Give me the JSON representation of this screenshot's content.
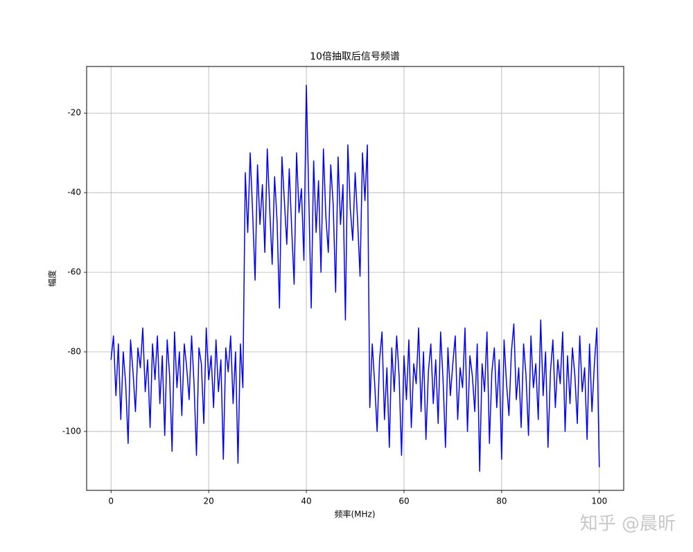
{
  "chart_data": {
    "type": "line",
    "title": "10倍抽取后信号频谱",
    "x_label": "频率(MHz)",
    "y_label": "幅度",
    "color": "#0000ff",
    "grid": true,
    "xlim": [
      -5,
      105
    ],
    "ylim": [
      -114.8,
      -8.3
    ],
    "xticks": [
      0,
      20,
      40,
      60,
      80,
      100
    ],
    "yticks": [
      -100,
      -80,
      -60,
      -40,
      -20
    ],
    "x": [
      0,
      0.5,
      1,
      1.5,
      2,
      2.5,
      3,
      3.5,
      4,
      4.5,
      5,
      5.5,
      6,
      6.5,
      7,
      7.5,
      8,
      8.5,
      9,
      9.5,
      10,
      10.5,
      11,
      11.5,
      12,
      12.5,
      13,
      13.5,
      14,
      14.5,
      15,
      15.5,
      16,
      16.5,
      17,
      17.5,
      18,
      18.5,
      19,
      19.5,
      20,
      20.5,
      21,
      21.5,
      22,
      22.5,
      23,
      23.5,
      24,
      24.5,
      25,
      25.5,
      26,
      26.5,
      27,
      27.5,
      28,
      28.5,
      29,
      29.5,
      30,
      30.5,
      31,
      31.5,
      32,
      32.5,
      33,
      33.5,
      34,
      34.5,
      35,
      35.5,
      36,
      36.5,
      37,
      37.5,
      38,
      38.5,
      39,
      39.5,
      40,
      40.5,
      41,
      41.5,
      42,
      42.5,
      43,
      43.5,
      44,
      44.5,
      45,
      45.5,
      46,
      46.5,
      47,
      47.5,
      48,
      48.5,
      49,
      49.5,
      50,
      50.5,
      51,
      51.5,
      52,
      52.5,
      53,
      53.5,
      54,
      54.5,
      55,
      55.5,
      56,
      56.5,
      57,
      57.5,
      58,
      58.5,
      59,
      59.5,
      60,
      60.5,
      61,
      61.5,
      62,
      62.5,
      63,
      63.5,
      64,
      64.5,
      65,
      65.5,
      66,
      66.5,
      67,
      67.5,
      68,
      68.5,
      69,
      69.5,
      70,
      70.5,
      71,
      71.5,
      72,
      72.5,
      73,
      73.5,
      74,
      74.5,
      75,
      75.5,
      76,
      76.5,
      77,
      77.5,
      78,
      78.5,
      79,
      79.5,
      80,
      80.5,
      81,
      81.5,
      82,
      82.5,
      83,
      83.5,
      84,
      84.5,
      85,
      85.5,
      86,
      86.5,
      87,
      87.5,
      88,
      88.5,
      89,
      89.5,
      90,
      90.5,
      91,
      91.5,
      92,
      92.5,
      93,
      93.5,
      94,
      94.5,
      95,
      95.5,
      96,
      96.5,
      97,
      97.5,
      98,
      98.5,
      99,
      99.5,
      100
    ],
    "values": [
      -82,
      -76,
      -91,
      -78,
      -97,
      -80,
      -88,
      -103,
      -77,
      -85,
      -95,
      -79,
      -84,
      -74,
      -90,
      -82,
      -99,
      -78,
      -87,
      -76,
      -93,
      -81,
      -101,
      -77,
      -86,
      -105,
      -75,
      -89,
      -80,
      -96,
      -78,
      -84,
      -92,
      -76,
      -88,
      -106,
      -79,
      -83,
      -98,
      -74,
      -87,
      -81,
      -94,
      -77,
      -90,
      -82,
      -107,
      -79,
      -85,
      -76,
      -93,
      -80,
      -108,
      -78,
      -89,
      -35,
      -50,
      -30,
      -45,
      -62,
      -33,
      -48,
      -38,
      -55,
      -29,
      -44,
      -58,
      -36,
      -47,
      -69,
      -31,
      -42,
      -53,
      -34,
      -49,
      -63,
      -30,
      -45,
      -39,
      -57,
      -13,
      -41,
      -69,
      -32,
      -50,
      -37,
      -60,
      -29,
      -46,
      -55,
      -33,
      -43,
      -65,
      -31,
      -48,
      -38,
      -72,
      -28,
      -44,
      -52,
      -35,
      -47,
      -61,
      -30,
      -42,
      -28,
      -94,
      -78,
      -88,
      -100,
      -82,
      -75,
      -97,
      -84,
      -104,
      -79,
      -90,
      -76,
      -86,
      -106,
      -81,
      -92,
      -77,
      -99,
      -83,
      -88,
      -74,
      -95,
      -80,
      -102,
      -85,
      -78,
      -93,
      -82,
      -98,
      -75,
      -87,
      -104,
      -79,
      -91,
      -83,
      -76,
      -97,
      -84,
      -89,
      -74,
      -100,
      -81,
      -86,
      -95,
      -78,
      -110,
      -83,
      -90,
      -75,
      -103,
      -85,
      -79,
      -94,
      -82,
      -107,
      -77,
      -88,
      -96,
      -80,
      -73,
      -92,
      -84,
      -99,
      -78,
      -86,
      -101,
      -76,
      -89,
      -83,
      -97,
      -72,
      -91,
      -80,
      -104,
      -85,
      -77,
      -94,
      -82,
      -88,
      -75,
      -100,
      -81,
      -93,
      -79,
      -86,
      -98,
      -76,
      -90,
      -84,
      -102,
      -78,
      -95,
      -83,
      -74,
      -109
    ]
  },
  "watermark": "知乎 @晨昕"
}
